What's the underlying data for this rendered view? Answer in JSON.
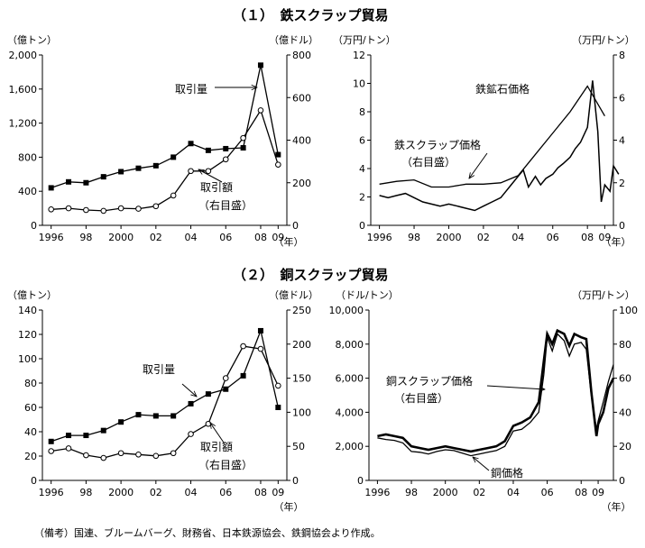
{
  "title1": "（１）　鉄スクラップ貿易",
  "title2": "（２）　銅スクラップ貿易",
  "note": "（備考）国連、ブルームバーグ、財務省、日本鉄源協会、鉄鋼協会より作成。",
  "year_unit": "（年）",
  "chart_data": [
    {
      "type": "line",
      "x_ticks": [
        "1996",
        "98",
        "2000",
        "02",
        "04",
        "06",
        "08",
        "09"
      ],
      "ylabel_left": "（億トン）",
      "ylabel_right": "（億ドル）",
      "ylim_left": [
        0,
        2000
      ],
      "ylim_right": [
        0,
        800
      ],
      "yticks_left": [
        "0",
        "400",
        "800",
        "1,200",
        "1,600",
        "2,000"
      ],
      "yticks_right": [
        "0",
        "200",
        "400",
        "600",
        "800"
      ],
      "x": [
        1996,
        1997,
        1998,
        1999,
        2000,
        2001,
        2002,
        2003,
        2004,
        2005,
        2006,
        2007,
        2008,
        2009
      ],
      "series": [
        {
          "name": "取引量",
          "axis": "left",
          "marker": "square",
          "values": [
            440,
            510,
            500,
            570,
            630,
            670,
            700,
            800,
            960,
            880,
            900,
            910,
            1880,
            830
          ]
        },
        {
          "name": "取引額（右目盛）",
          "axis": "right",
          "marker": "circle",
          "values": [
            75,
            80,
            72,
            68,
            80,
            78,
            90,
            140,
            255,
            255,
            310,
            410,
            540,
            285
          ]
        }
      ],
      "annotations": [
        "取引量",
        "取引額",
        "（右目盛）"
      ]
    },
    {
      "type": "line",
      "x_ticks": [
        "1996",
        "98",
        "2000",
        "02",
        "04",
        "06",
        "08",
        "09"
      ],
      "ylabel_left": "（万円/トン）",
      "ylabel_right": "（万円/トン）",
      "ylim_left": [
        0,
        12
      ],
      "ylim_right": [
        0,
        8
      ],
      "yticks_left": [
        "0",
        "2",
        "4",
        "6",
        "8",
        "10",
        "12"
      ],
      "yticks_right": [
        "0",
        "2",
        "4",
        "6",
        "8"
      ],
      "series": [
        {
          "name": "鉄スクラップ価格（右目盛）",
          "axis": "right",
          "x": [
            1996.0,
            1996.5,
            1997.0,
            1997.5,
            1998.0,
            1998.5,
            1999.0,
            1999.5,
            2000.0,
            2000.5,
            2001.0,
            2001.5,
            2002.0,
            2002.5,
            2003.0,
            2003.3,
            2003.6,
            2004.0,
            2004.3,
            2004.6,
            2005.0,
            2005.3,
            2005.6,
            2006.0,
            2006.3,
            2006.6,
            2007.0,
            2007.3,
            2007.6,
            2008.0,
            2008.3,
            2008.6,
            2008.8,
            2009.0,
            2009.3,
            2009.5,
            2009.8
          ],
          "values": [
            1.4,
            1.3,
            1.4,
            1.5,
            1.3,
            1.1,
            1.0,
            0.9,
            1.0,
            0.9,
            0.8,
            0.7,
            0.9,
            1.1,
            1.3,
            1.6,
            1.9,
            2.3,
            2.6,
            1.8,
            2.3,
            1.9,
            2.2,
            2.4,
            2.7,
            2.9,
            3.2,
            3.6,
            3.9,
            4.6,
            6.8,
            4.4,
            1.1,
            1.9,
            1.6,
            2.8,
            2.4
          ]
        },
        {
          "name": "鉄鉱石価格",
          "axis": "left",
          "x": [
            1996,
            1997,
            1998,
            1999,
            2000,
            2001,
            2002,
            2003,
            2004,
            2005,
            2006,
            2007,
            2008,
            2009
          ],
          "values": [
            2.9,
            3.1,
            3.2,
            2.7,
            2.7,
            2.9,
            2.9,
            3.0,
            3.5,
            5.0,
            6.5,
            8.0,
            9.8,
            7.7
          ]
        }
      ],
      "annotations": [
        "鉄鉱石価格",
        "鉄スクラップ価格",
        "（右目盛）"
      ]
    },
    {
      "type": "line",
      "x_ticks": [
        "1996",
        "98",
        "2000",
        "02",
        "04",
        "06",
        "08",
        "09"
      ],
      "ylabel_left": "（億トン）",
      "ylabel_right": "（億ドル）",
      "ylim_left": [
        0,
        140
      ],
      "ylim_right": [
        0,
        250
      ],
      "yticks_left": [
        "0",
        "20",
        "40",
        "60",
        "80",
        "100",
        "120",
        "140"
      ],
      "yticks_right": [
        "0",
        "50",
        "100",
        "150",
        "200",
        "250"
      ],
      "x": [
        1996,
        1997,
        1998,
        1999,
        2000,
        2001,
        2002,
        2003,
        2004,
        2005,
        2006,
        2007,
        2008,
        2009
      ],
      "series": [
        {
          "name": "取引量",
          "axis": "left",
          "marker": "square",
          "values": [
            32,
            37,
            37,
            41,
            48,
            54,
            53,
            53,
            63,
            71,
            75,
            86,
            123,
            60
          ]
        },
        {
          "name": "取引額（右目盛）",
          "axis": "right",
          "marker": "circle",
          "values": [
            43,
            47,
            37,
            33,
            40,
            38,
            36,
            40,
            68,
            83,
            150,
            197,
            193,
            139
          ]
        }
      ],
      "annotations": [
        "取引量",
        "取引額",
        "（右目盛）"
      ]
    },
    {
      "type": "line",
      "x_ticks": [
        "1996",
        "98",
        "2000",
        "02",
        "04",
        "06",
        "08",
        "09"
      ],
      "ylabel_left": "（ドル/トン）",
      "ylabel_right": "（万円/トン）",
      "ylim_left": [
        0,
        10000
      ],
      "ylim_right": [
        0,
        100
      ],
      "yticks_left": [
        "0",
        "2,000",
        "4,000",
        "6,000",
        "8,000",
        "10,000"
      ],
      "yticks_right": [
        "0",
        "20",
        "40",
        "60",
        "80",
        "100"
      ],
      "series": [
        {
          "name": "銅スクラップ価格（右目盛）",
          "axis": "right",
          "x": [
            1996.0,
            1996.5,
            1997.0,
            1997.5,
            1998.0,
            1998.5,
            1999.0,
            1999.5,
            2000.0,
            2000.5,
            2001.0,
            2001.5,
            2002.0,
            2002.5,
            2003.0,
            2003.5,
            2004.0,
            2004.5,
            2005.0,
            2005.5,
            2005.8,
            2006.0,
            2006.3,
            2006.6,
            2007.0,
            2007.3,
            2007.6,
            2008.0,
            2008.3,
            2008.6,
            2008.9,
            2009.0,
            2009.3,
            2009.6,
            2009.9
          ],
          "values": [
            26,
            27,
            26,
            25,
            20,
            19,
            18,
            19,
            20,
            19,
            18,
            17,
            18,
            19,
            20,
            23,
            32,
            34,
            37,
            46,
            70,
            86,
            80,
            88,
            86,
            79,
            86,
            84,
            83,
            52,
            26,
            33,
            40,
            54,
            60
          ]
        },
        {
          "name": "銅価格",
          "axis": "left",
          "x": [
            1996.0,
            1996.5,
            1997.0,
            1997.5,
            1998.0,
            1998.5,
            1999.0,
            1999.5,
            2000.0,
            2000.5,
            2001.0,
            2001.5,
            2002.0,
            2002.5,
            2003.0,
            2003.5,
            2004.0,
            2004.5,
            2005.0,
            2005.5,
            2005.8,
            2006.0,
            2006.3,
            2006.6,
            2007.0,
            2007.3,
            2007.6,
            2008.0,
            2008.3,
            2008.6,
            2008.9,
            2009.0,
            2009.3,
            2009.6,
            2009.9
          ],
          "values": [
            2500,
            2400,
            2350,
            2200,
            1700,
            1650,
            1550,
            1700,
            1800,
            1750,
            1600,
            1450,
            1550,
            1650,
            1750,
            2000,
            2900,
            3000,
            3400,
            4000,
            6200,
            8400,
            7600,
            8600,
            8200,
            7300,
            8000,
            8100,
            7700,
            5000,
            3000,
            3500,
            4600,
            5800,
            6800
          ]
        }
      ],
      "annotations": [
        "銅スクラップ価格",
        "（右目盛）",
        "銅価格"
      ]
    }
  ]
}
